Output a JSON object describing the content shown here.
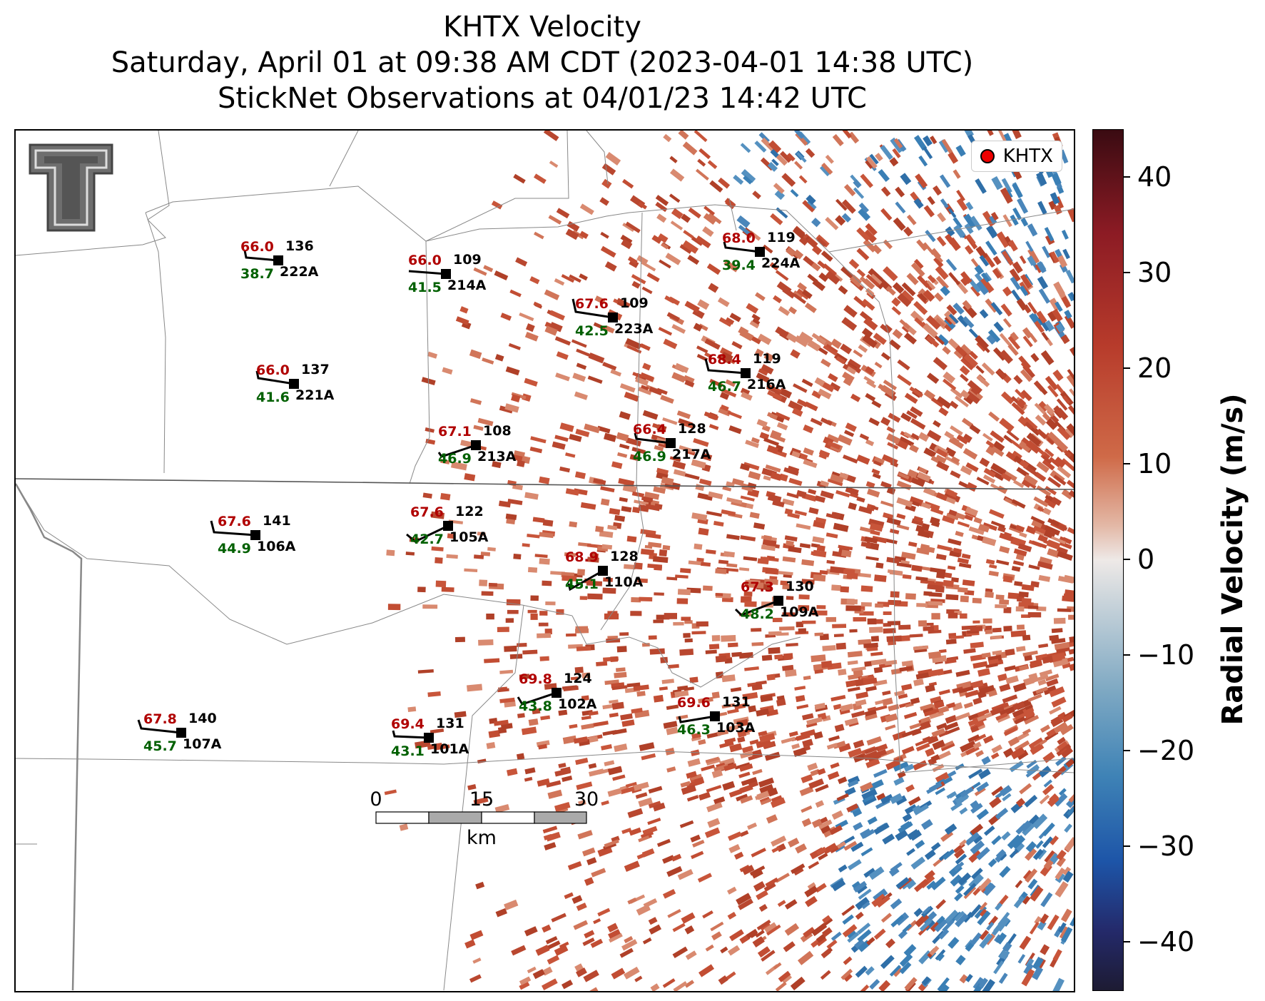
{
  "title": {
    "line1": "KHTX Velocity",
    "line2": "Saturday, April 01 at 09:38 AM CDT (2023-04-01 14:38 UTC)",
    "line3": "StickNet Observations at 04/01/23 14:42 UTC"
  },
  "legend": {
    "label": "KHTX",
    "marker_color": "#e00000"
  },
  "colorbar": {
    "label": "Radial Velocity (m/s)",
    "ticks": [
      "40",
      "30",
      "20",
      "10",
      "0",
      "−10",
      "−20",
      "−30",
      "−40"
    ],
    "range": [
      -45,
      45
    ]
  },
  "scalebar": {
    "labels": [
      "0",
      "15",
      "30"
    ],
    "unit": "km"
  },
  "colors": {
    "temp": "#b00000",
    "dew": "#006000",
    "positive_velocity": "#c8553a",
    "negative_velocity": "#3a7fb5"
  },
  "stations": [
    {
      "id": "222A",
      "temp": "66.0",
      "dew": "38.7",
      "value": "136"
    },
    {
      "id": "214A",
      "temp": "66.0",
      "dew": "41.5",
      "value": "109"
    },
    {
      "id": "224A",
      "temp": "68.0",
      "dew": "39.4",
      "value": "119"
    },
    {
      "id": "223A",
      "temp": "67.6",
      "dew": "42.5",
      "value": "109"
    },
    {
      "id": "216A",
      "temp": "68.4",
      "dew": "46.7",
      "value": "119"
    },
    {
      "id": "221A",
      "temp": "66.0",
      "dew": "41.6",
      "value": "137"
    },
    {
      "id": "213A",
      "temp": "67.1",
      "dew": "46.9",
      "value": "108"
    },
    {
      "id": "217A",
      "temp": "66.4",
      "dew": "46.9",
      "value": "128"
    },
    {
      "id": "106A",
      "temp": "67.6",
      "dew": "44.9",
      "value": "141"
    },
    {
      "id": "105A",
      "temp": "67.6",
      "dew": "42.7",
      "value": "122"
    },
    {
      "id": "110A",
      "temp": "68.9",
      "dew": "45.1",
      "value": "128"
    },
    {
      "id": "109A",
      "temp": "67.3",
      "dew": "48.2",
      "value": "130"
    },
    {
      "id": "102A",
      "temp": "69.8",
      "dew": "43.8",
      "value": "124"
    },
    {
      "id": "103A",
      "temp": "69.6",
      "dew": "46.3",
      "value": "131"
    },
    {
      "id": "107A",
      "temp": "67.8",
      "dew": "45.7",
      "value": "140"
    },
    {
      "id": "101A",
      "temp": "69.4",
      "dew": "43.1",
      "value": "131"
    }
  ]
}
